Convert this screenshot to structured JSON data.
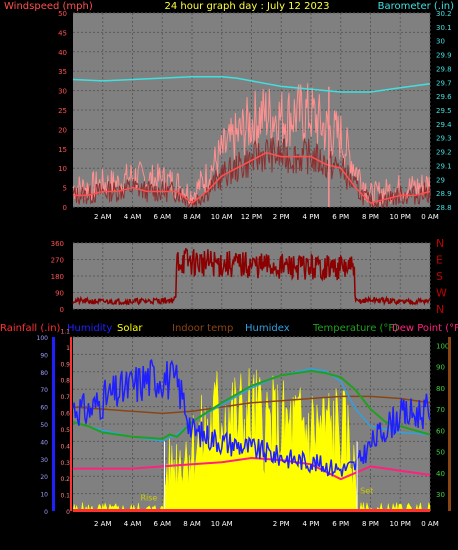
{
  "colors": {
    "background": "#000000",
    "panel": "#808080",
    "grid": "#5a5a5a",
    "wind_speed": "#ff5050",
    "wind_gust": "#ff9090",
    "barometer": "#40e0e0",
    "direction": "#8b0000",
    "rain": "#ff3030",
    "humidity": "#2020ff",
    "solar": "#ffff00",
    "indoor": "#8b4513",
    "humidex": "#30a0e0",
    "temperature": "#20a020",
    "dewpoint": "#ff2080"
  },
  "chart_data": [
    {
      "type": "line",
      "title": "24 hour graph day : July 12 2023",
      "left_label": "Windspeed (mph)",
      "right_label": "Barometer (.in)",
      "x_ticks": [
        "2 AM",
        "4 AM",
        "6 AM",
        "8 AM",
        "10 AM",
        "12 PM",
        "2 PM",
        "4 PM",
        "6 PM",
        "8 PM",
        "10 PM",
        "0 AM"
      ],
      "y_left_ticks": [
        "0",
        "5",
        "10",
        "15",
        "20",
        "25",
        "30",
        "35",
        "40",
        "45",
        "50"
      ],
      "y_right_ticks": [
        "28.8",
        "28.9",
        "29",
        "29.1",
        "29.2",
        "29.3",
        "29.4",
        "29.5",
        "29.6",
        "29.7",
        "29.8",
        "29.9",
        "30",
        "30.1",
        "30.2"
      ],
      "ylim_left": [
        0,
        50
      ],
      "ylim_right": [
        28.8,
        30.2
      ],
      "xlim_hours": [
        0,
        24
      ],
      "series": [
        {
          "name": "Wind gust",
          "axis": "left",
          "x": [
            0,
            1,
            2,
            3,
            4,
            5,
            6,
            7,
            8,
            9,
            10,
            11,
            12,
            13,
            14,
            15,
            16,
            17,
            18,
            19,
            20,
            21,
            22,
            23,
            24
          ],
          "values": [
            5,
            5,
            6,
            6,
            8,
            7,
            7,
            6,
            3,
            8,
            14,
            18,
            22,
            24,
            23,
            24,
            24,
            20,
            18,
            10,
            3,
            4,
            5,
            5,
            6
          ]
        },
        {
          "name": "Wind speed",
          "axis": "left",
          "x": [
            0,
            1,
            2,
            3,
            4,
            5,
            6,
            7,
            8,
            9,
            10,
            11,
            12,
            13,
            14,
            15,
            16,
            17,
            18,
            19,
            20,
            21,
            22,
            23,
            24
          ],
          "values": [
            3,
            3,
            4,
            4,
            5,
            4,
            4,
            4,
            1,
            4,
            8,
            10,
            12,
            14,
            13,
            13,
            13,
            11,
            10,
            5,
            1,
            2,
            3,
            3,
            4
          ]
        },
        {
          "name": "Barometer",
          "axis": "right",
          "x": [
            0,
            2,
            4,
            6,
            8,
            10,
            11,
            12,
            13,
            14,
            16,
            18,
            20,
            22,
            24
          ],
          "values": [
            29.72,
            29.71,
            29.72,
            29.73,
            29.74,
            29.74,
            29.73,
            29.71,
            29.69,
            29.67,
            29.65,
            29.63,
            29.63,
            29.66,
            29.69
          ]
        }
      ],
      "annotations": [
        {
          "type": "spike",
          "x": 17.2,
          "value": 31
        }
      ]
    },
    {
      "type": "line",
      "y_left_ticks": [
        "0",
        "90",
        "180",
        "270",
        "360"
      ],
      "y_right_labels": [
        "N",
        "W",
        "S",
        "E",
        "N"
      ],
      "ylim": [
        0,
        360
      ],
      "xlim_hours": [
        0,
        24
      ],
      "series": [
        {
          "name": "Wind direction",
          "x": [
            0,
            2,
            4,
            6,
            6.9,
            7.0,
            8,
            10,
            12,
            14,
            16,
            18,
            18.9,
            19.0,
            20,
            22,
            24
          ],
          "values": [
            45,
            40,
            42,
            45,
            50,
            270,
            255,
            245,
            238,
            230,
            228,
            225,
            220,
            40,
            50,
            40,
            45
          ]
        }
      ]
    },
    {
      "type": "line",
      "header_labels": [
        "Rainfall (.in)",
        "Humidity",
        "Solar",
        "Indoor temp",
        "Humidex",
        "Temperature (°F)",
        "Dew Point (°F)"
      ],
      "y_left1_ticks": [
        "0",
        "10",
        "20",
        "30",
        "40",
        "50",
        "60",
        "70",
        "80",
        "90",
        "100"
      ],
      "y_left2_ticks": [
        "0",
        "0.1",
        "0.2",
        "0.3",
        "0.4",
        "0.5",
        "0.6",
        "0.7",
        "0.8",
        "0.9",
        "1",
        "1.1"
      ],
      "y_right_ticks": [
        "30",
        "40",
        "50",
        "60",
        "70",
        "80",
        "90",
        "100"
      ],
      "ylim_humidity": [
        0,
        100
      ],
      "ylim_temp": [
        22,
        104
      ],
      "xlim_hours": [
        0,
        24
      ],
      "x_ticks": [
        "2 AM",
        "4 AM",
        "6 AM",
        "8 AM",
        "10 AM",
        "2 PM",
        "4 PM",
        "6 PM",
        "8 PM",
        "10 PM",
        "0 AM"
      ],
      "sun_markers": [
        "Rise",
        "Set"
      ],
      "series": [
        {
          "name": "Humidity",
          "axis": "percent",
          "x": [
            0,
            1,
            2,
            3,
            4,
            5,
            6,
            6.5,
            7,
            7.5,
            8,
            9,
            10,
            12,
            14,
            16,
            18,
            19,
            20,
            21,
            22,
            23,
            24
          ],
          "values": [
            60,
            57,
            64,
            68,
            72,
            76,
            78,
            75,
            73,
            62,
            46,
            43,
            40,
            36,
            31,
            28,
            24,
            26,
            38,
            48,
            55,
            56,
            58
          ]
        },
        {
          "name": "Solar",
          "axis": "percent",
          "area": true,
          "x": [
            0,
            6.1,
            6.2,
            7,
            8,
            9,
            10,
            11,
            12,
            13,
            14,
            15,
            16,
            17,
            18,
            18.5,
            19,
            19.1,
            24
          ],
          "values": [
            0,
            0,
            22,
            30,
            37,
            45,
            60,
            52,
            55,
            50,
            48,
            48,
            48,
            48,
            48,
            40,
            20,
            0,
            0
          ]
        },
        {
          "name": "Indoor temp",
          "axis": "temp",
          "x": [
            0,
            2,
            4,
            6,
            8,
            10,
            12,
            14,
            16,
            18,
            20,
            22,
            24
          ],
          "values": [
            71,
            70,
            69,
            68,
            69,
            71,
            73,
            74,
            75,
            76,
            76,
            75,
            73
          ]
        },
        {
          "name": "Humidex",
          "axis": "temp",
          "x": [
            0,
            2,
            4,
            6,
            7,
            8,
            10,
            12,
            14,
            16,
            17,
            18,
            19,
            20,
            22,
            24
          ],
          "values": [
            64,
            60,
            57,
            55,
            58,
            64,
            72,
            80,
            86,
            89,
            88,
            83,
            70,
            62,
            59,
            58
          ]
        },
        {
          "name": "Temperature",
          "axis": "temp",
          "x": [
            0,
            1,
            2,
            4,
            6,
            6.5,
            7,
            8,
            10,
            12,
            14,
            16,
            17,
            18,
            19,
            20,
            21,
            22,
            23,
            24
          ],
          "values": [
            64,
            62,
            59,
            57,
            56,
            58,
            57,
            64,
            73,
            81,
            86,
            88,
            87,
            85,
            79,
            70,
            64,
            62,
            60,
            58
          ]
        },
        {
          "name": "Dew Point",
          "axis": "temp",
          "x": [
            0,
            2,
            4,
            6,
            8,
            10,
            12,
            14,
            16,
            18,
            19,
            20,
            22,
            24
          ],
          "values": [
            42,
            42,
            42,
            43,
            44,
            45,
            47,
            46,
            44,
            37,
            40,
            43,
            41,
            39
          ]
        },
        {
          "name": "Rainfall",
          "axis": "percent",
          "x": [
            0,
            24
          ],
          "values": [
            0,
            0
          ]
        }
      ]
    }
  ]
}
